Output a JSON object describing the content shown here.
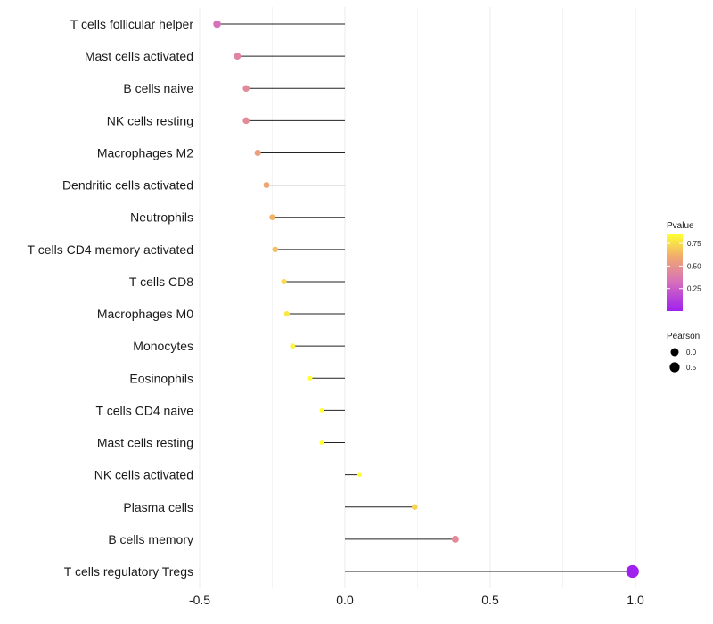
{
  "chart_data": {
    "type": "lollipop",
    "categories": [
      "T cells follicular helper",
      "Mast cells activated",
      "B cells naive",
      "NK cells resting",
      "Macrophages M2",
      "Dendritic cells activated",
      "Neutrophils",
      "T cells CD4 memory activated",
      "T cells CD8",
      "Macrophages M0",
      "Monocytes",
      "Eosinophils",
      "T cells CD4 naive",
      "Mast cells resting",
      "NK cells activated",
      "Plasma cells",
      "B cells memory",
      "T cells regulatory  Tregs"
    ],
    "pearson": [
      -0.44,
      -0.37,
      -0.34,
      -0.34,
      -0.3,
      -0.27,
      -0.25,
      -0.24,
      -0.21,
      -0.2,
      -0.18,
      -0.12,
      -0.08,
      -0.08,
      0.05,
      0.24,
      0.38,
      0.99
    ],
    "pvalue": [
      0.33,
      0.42,
      0.45,
      0.46,
      0.55,
      0.58,
      0.62,
      0.65,
      0.72,
      0.75,
      0.78,
      0.88,
      0.95,
      0.95,
      0.98,
      0.7,
      0.45,
      0.0
    ],
    "xlim": [
      -0.5,
      1.0
    ],
    "xticks": [
      -0.5,
      0.0,
      0.5,
      1.0
    ],
    "xtick_labels": [
      "-0.5",
      "0.0",
      "0.5",
      "1.0"
    ],
    "title": "",
    "xlabel": "",
    "ylabel": "",
    "grid": true,
    "colorbar": {
      "title": "Pvalue",
      "ticks": [
        0.25,
        0.5,
        0.75
      ],
      "tick_labels": [
        "0.25",
        "0.50",
        "0.75"
      ],
      "range": [
        0.0,
        0.85
      ],
      "low_color": "#a020f0",
      "mid_color": "#e8a0a0",
      "high_color": "#ffff33"
    },
    "size_legend": {
      "title": "Pearson",
      "entries": [
        {
          "value": 0.0,
          "label": "0.0"
        },
        {
          "value": 0.5,
          "label": "0.5"
        }
      ]
    }
  }
}
